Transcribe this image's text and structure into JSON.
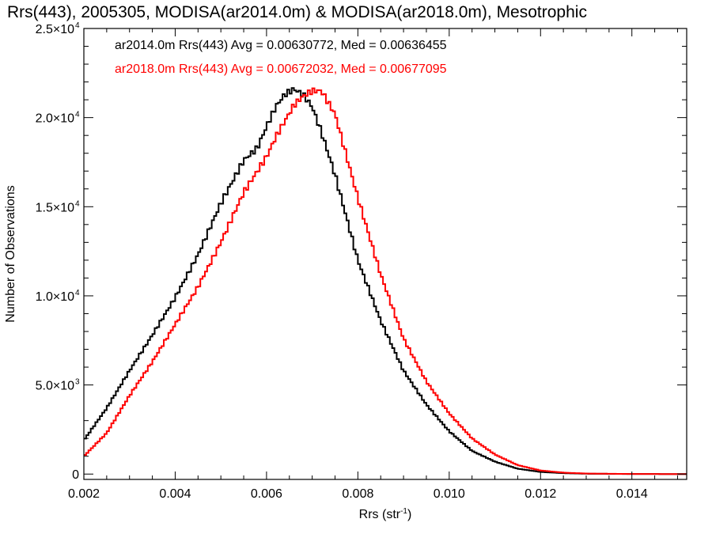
{
  "chart_data": {
    "type": "line",
    "title": "Rrs(443), 2005305, MODISA(ar2014.0m) & MODISA(ar2018.0m), Mesotrophic",
    "xlabel": "Rrs (str",
    "xlabel_sup": "-1",
    "xlabel_close": ")",
    "ylabel": "Number of Observations",
    "xlim": [
      0.002,
      0.0152
    ],
    "ylim": [
      -300,
      25000
    ],
    "grid": false,
    "x_ticks": [
      {
        "value": 0.002,
        "label": "0.002"
      },
      {
        "value": 0.004,
        "label": "0.004"
      },
      {
        "value": 0.006,
        "label": "0.006"
      },
      {
        "value": 0.008,
        "label": "0.008"
      },
      {
        "value": 0.01,
        "label": "0.010"
      },
      {
        "value": 0.012,
        "label": "0.012"
      },
      {
        "value": 0.014,
        "label": "0.014"
      }
    ],
    "y_ticks": [
      {
        "value": 0,
        "mant": "0",
        "exp": ""
      },
      {
        "value": 5000,
        "mant": "5.0×10",
        "exp": "3"
      },
      {
        "value": 10000,
        "mant": "1.0×10",
        "exp": "4"
      },
      {
        "value": 15000,
        "mant": "1.5×10",
        "exp": "4"
      },
      {
        "value": 20000,
        "mant": "2.0×10",
        "exp": "4"
      },
      {
        "value": 25000,
        "mant": "2.5×10",
        "exp": "4"
      }
    ],
    "annotations": [
      {
        "text": "ar2014.0m Rrs(443) Avg = 0.00630772, Med = 0.00636455",
        "color": "#000000"
      },
      {
        "text": "ar2018.0m Rrs(443) Avg = 0.00672032, Med = 0.00677095",
        "color": "#ff0000"
      }
    ],
    "bin_width": 5e-05,
    "series": [
      {
        "color": "#000000",
        "x": [
          0.002,
          0.0025,
          0.003,
          0.0035,
          0.004,
          0.0045,
          0.005,
          0.0055,
          0.0058,
          0.006,
          0.0062,
          0.0064,
          0.0066,
          0.0068,
          0.007,
          0.0072,
          0.0075,
          0.008,
          0.0085,
          0.009,
          0.0095,
          0.01,
          0.0105,
          0.011,
          0.0115,
          0.012,
          0.0125,
          0.013,
          0.014,
          0.0152
        ],
        "y": [
          1900,
          3700,
          5800,
          7800,
          9900,
          12300,
          15200,
          17600,
          18300,
          19500,
          20600,
          21300,
          21600,
          21300,
          20600,
          19200,
          16800,
          12000,
          8600,
          5800,
          3900,
          2400,
          1300,
          700,
          300,
          120,
          50,
          20,
          5,
          0
        ]
      },
      {
        "color": "#ff0000",
        "x": [
          0.002,
          0.0025,
          0.003,
          0.0035,
          0.004,
          0.0045,
          0.005,
          0.0055,
          0.0058,
          0.006,
          0.0062,
          0.0064,
          0.0066,
          0.0068,
          0.007,
          0.0072,
          0.0075,
          0.008,
          0.0085,
          0.009,
          0.0095,
          0.01,
          0.0105,
          0.011,
          0.0115,
          0.012,
          0.0125,
          0.013,
          0.014,
          0.0152
        ],
        "y": [
          1000,
          2300,
          4400,
          6300,
          8400,
          10500,
          13000,
          15800,
          17000,
          17800,
          18900,
          19800,
          20700,
          21200,
          21500,
          21500,
          20200,
          15500,
          11200,
          7600,
          5200,
          3400,
          2000,
          1100,
          500,
          200,
          80,
          30,
          5,
          0
        ]
      }
    ]
  }
}
